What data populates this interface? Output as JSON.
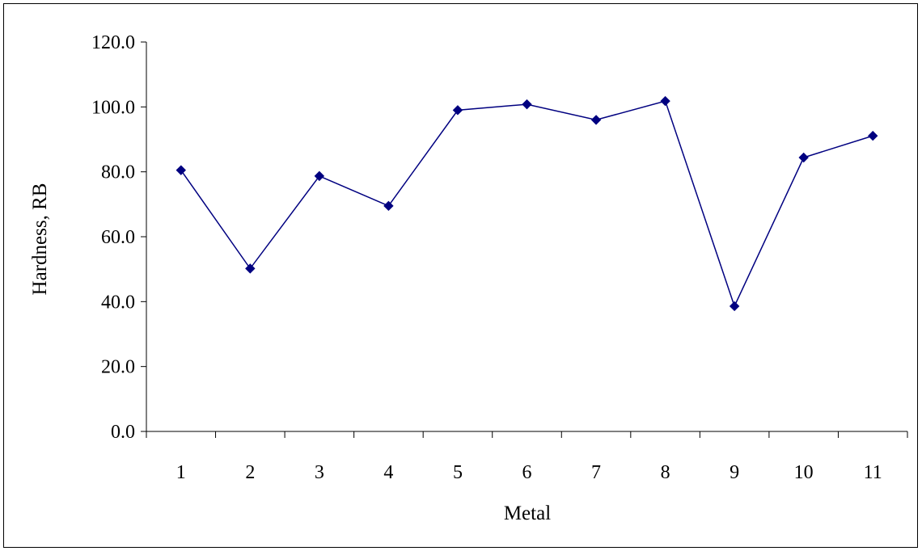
{
  "chart_data": {
    "type": "line",
    "title": "",
    "xlabel": "Metal",
    "ylabel": "Hardness, RB",
    "categories": [
      "1",
      "2",
      "3",
      "4",
      "5",
      "6",
      "7",
      "8",
      "9",
      "10",
      "11"
    ],
    "y_tick_labels": [
      "0.0",
      "20.0",
      "40.0",
      "60.0",
      "80.0",
      "100.0",
      "120.0"
    ],
    "ylim": [
      0,
      120
    ],
    "grid": false,
    "legend": "none",
    "series": [
      {
        "values": [
          80.5,
          50.2,
          78.7,
          69.5,
          99.0,
          100.8,
          96.0,
          101.8,
          38.6,
          84.4,
          91.1
        ],
        "color": "#000080",
        "marker": "diamond"
      }
    ]
  }
}
